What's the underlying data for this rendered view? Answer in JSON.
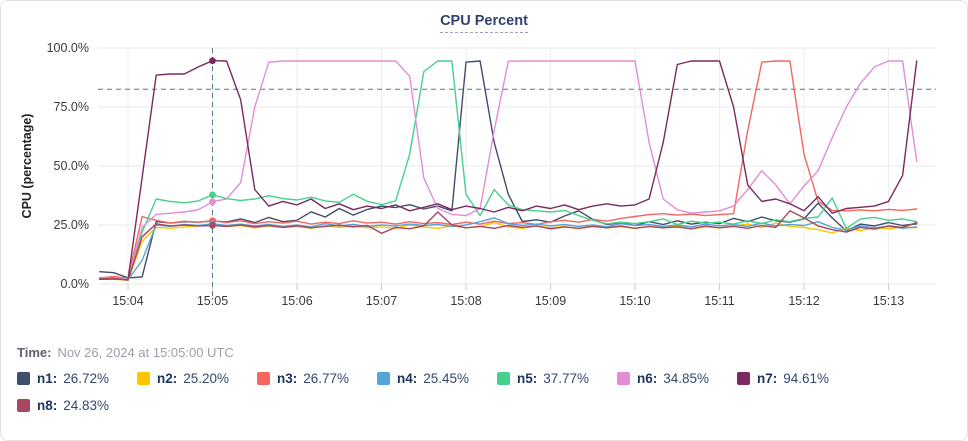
{
  "panel": {
    "title": "CPU Percent",
    "time_label": "Time:",
    "time_value": "Nov 26, 2024 at 15:05:00 UTC"
  },
  "legend": [
    {
      "label": "n1:",
      "value": "26.72%",
      "color": "#3f4e6d"
    },
    {
      "label": "n2:",
      "value": "25.20%",
      "color": "#fdc500"
    },
    {
      "label": "n3:",
      "value": "26.77%",
      "color": "#f4665e"
    },
    {
      "label": "n4:",
      "value": "25.45%",
      "color": "#55a3d8"
    },
    {
      "label": "n5:",
      "value": "37.77%",
      "color": "#47d08d"
    },
    {
      "label": "n6:",
      "value": "34.85%",
      "color": "#e28dd6"
    },
    {
      "label": "n7:",
      "value": "94.61%",
      "color": "#7b2a60"
    },
    {
      "label": "n8:",
      "value": "24.83%",
      "color": "#a8475f"
    }
  ],
  "chart_data": {
    "type": "line",
    "title": "CPU Percent",
    "ylabel": "CPU (percentage)",
    "ylim": [
      0,
      100
    ],
    "grid": true,
    "y_ticks": [
      "0.0%",
      "25.0%",
      "50.0%",
      "75.0%",
      "100.0%"
    ],
    "y_tick_values": [
      0,
      25,
      50,
      75,
      100
    ],
    "x_ticks": [
      "15:04",
      "15:05",
      "15:06",
      "15:07",
      "15:08",
      "15:09",
      "15:10",
      "15:11",
      "15:12",
      "15:13"
    ],
    "threshold_percent": 82.5,
    "crosshair_time": "15:05",
    "crosshair_x_min": 1.0,
    "t0_min": -0.3333,
    "dt_min": 0.16667,
    "series": [
      {
        "name": "n1",
        "color": "#3f4e6d",
        "at_cursor": 26.72,
        "values": [
          5.2,
          4.8,
          2.6,
          3.0,
          26.5,
          25.8,
          26.4,
          26.2,
          26.7,
          26.3,
          27.6,
          26.0,
          28.2,
          26.4,
          27.0,
          30.6,
          28.4,
          32.0,
          29.2,
          31.6,
          33.0,
          32.4,
          33.6,
          31.8,
          33.0,
          31.0,
          94.0,
          94.5,
          60.0,
          38.0,
          26.5,
          27.2,
          26.2,
          28.8,
          31.0,
          27.4,
          25.2,
          26.0,
          24.8,
          26.4,
          25.2,
          26.8,
          25.4,
          26.2,
          25.6,
          27.8,
          26.4,
          28.4,
          26.8,
          26.2,
          27.6,
          34.3,
          28.0,
          22.5,
          25.4,
          24.6,
          26.0,
          24.8,
          25.5
        ]
      },
      {
        "name": "n2",
        "color": "#fdc500",
        "at_cursor": 25.2,
        "values": [
          2.2,
          2.0,
          1.6,
          18.0,
          24.0,
          23.6,
          24.2,
          24.6,
          25.2,
          24.4,
          24.8,
          23.8,
          24.6,
          24.0,
          24.4,
          23.6,
          24.8,
          24.0,
          24.6,
          23.8,
          24.2,
          23.6,
          25.0,
          24.2,
          23.6,
          24.6,
          23.8,
          24.4,
          26.0,
          24.2,
          23.6,
          24.6,
          23.8,
          24.4,
          23.4,
          24.6,
          23.8,
          24.2,
          23.6,
          24.4,
          23.8,
          24.6,
          23.4,
          24.2,
          23.8,
          24.6,
          25.4,
          24.0,
          25.8,
          24.4,
          24.0,
          23.0,
          21.6,
          23.8,
          22.6,
          24.0,
          23.4,
          24.2,
          23.8
        ]
      },
      {
        "name": "n3",
        "color": "#f4665e",
        "at_cursor": 26.77,
        "values": [
          2.6,
          3.2,
          2.4,
          28.5,
          27.0,
          25.8,
          26.6,
          26.2,
          26.8,
          26.0,
          26.8,
          25.6,
          26.4,
          25.8,
          26.6,
          25.4,
          26.2,
          25.6,
          26.8,
          25.8,
          26.2,
          25.4,
          26.4,
          25.6,
          26.0,
          25.2,
          26.2,
          25.4,
          26.6,
          25.6,
          26.0,
          25.2,
          26.4,
          27.0,
          26.2,
          27.4,
          26.6,
          27.8,
          28.6,
          29.4,
          29.8,
          29.2,
          29.6,
          29.0,
          29.4,
          29.8,
          65.0,
          94.0,
          94.5,
          94.5,
          55.0,
          35.0,
          31.2,
          31.0,
          31.4,
          31.0,
          31.6,
          31.2,
          31.8
        ]
      },
      {
        "name": "n4",
        "color": "#55a3d8",
        "at_cursor": 25.45,
        "values": [
          2.0,
          2.2,
          1.8,
          10.0,
          25.0,
          24.4,
          25.2,
          24.8,
          25.5,
          24.8,
          25.4,
          24.6,
          25.2,
          24.4,
          25.0,
          24.2,
          25.6,
          24.6,
          25.2,
          24.4,
          25.0,
          24.6,
          25.4,
          24.8,
          25.2,
          24.4,
          25.0,
          26.4,
          28.0,
          25.6,
          24.8,
          25.4,
          24.6,
          25.2,
          24.4,
          25.0,
          24.2,
          25.6,
          24.8,
          25.2,
          24.4,
          25.0,
          24.2,
          25.4,
          24.6,
          25.2,
          24.4,
          25.8,
          24.6,
          25.2,
          24.8,
          26.4,
          24.0,
          22.8,
          24.6,
          23.8,
          24.4,
          23.6,
          24.2
        ]
      },
      {
        "name": "n5",
        "color": "#47d08d",
        "at_cursor": 37.77,
        "values": [
          2.8,
          2.6,
          2.2,
          22.0,
          36.0,
          35.0,
          34.4,
          35.2,
          37.8,
          36.2,
          35.4,
          36.0,
          37.4,
          36.2,
          35.6,
          36.8,
          35.2,
          34.6,
          38.0,
          35.0,
          33.6,
          35.2,
          55.0,
          90.0,
          94.5,
          94.5,
          38.0,
          29.0,
          40.0,
          33.5,
          31.5,
          31.0,
          30.5,
          31.2,
          29.0,
          27.0,
          25.5,
          26.2,
          25.6,
          26.4,
          27.6,
          25.2,
          26.6,
          25.8,
          26.2,
          25.4,
          26.8,
          25.6,
          27.2,
          26.4,
          27.8,
          28.4,
          36.5,
          23.5,
          27.6,
          28.2,
          27.0,
          27.6,
          26.4
        ]
      },
      {
        "name": "n6",
        "color": "#e28dd6",
        "at_cursor": 34.85,
        "values": [
          2.4,
          2.8,
          2.0,
          24.0,
          29.5,
          30.0,
          30.5,
          31.5,
          34.9,
          36.0,
          43.0,
          75.0,
          94.0,
          94.5,
          94.5,
          94.5,
          94.5,
          94.5,
          94.5,
          94.5,
          94.5,
          94.5,
          88.0,
          45.0,
          32.0,
          29.5,
          29.0,
          32.0,
          65.0,
          94.4,
          94.5,
          94.5,
          94.5,
          94.5,
          94.5,
          94.5,
          94.5,
          94.5,
          94.5,
          60.0,
          36.0,
          31.5,
          30.0,
          30.5,
          31.0,
          33.0,
          40.0,
          48.0,
          42.0,
          34.0,
          41.5,
          48.0,
          62.0,
          75.0,
          85.0,
          92.0,
          94.5,
          94.5,
          52.0
        ]
      },
      {
        "name": "n7",
        "color": "#7b2a60",
        "at_cursor": 94.61,
        "values": [
          2.0,
          2.2,
          1.8,
          45.0,
          88.5,
          89.0,
          89.0,
          92.0,
          94.6,
          94.5,
          78.0,
          40.0,
          33.0,
          35.0,
          33.5,
          36.0,
          32.0,
          34.0,
          31.5,
          33.0,
          32.0,
          33.5,
          31.0,
          32.5,
          34.0,
          31.5,
          33.0,
          32.0,
          30.5,
          32.5,
          31.0,
          33.0,
          32.0,
          33.5,
          31.5,
          33.0,
          34.0,
          33.0,
          33.5,
          36.0,
          60.0,
          93.0,
          94.5,
          94.5,
          94.5,
          75.0,
          42.0,
          35.0,
          36.0,
          34.0,
          31.0,
          37.0,
          30.0,
          32.0,
          32.5,
          33.0,
          35.0,
          46.0,
          94.5
        ]
      },
      {
        "name": "n8",
        "color": "#a8475f",
        "at_cursor": 24.83,
        "values": [
          2.2,
          2.4,
          1.6,
          20.0,
          25.5,
          24.6,
          25.0,
          24.6,
          24.8,
          24.4,
          25.0,
          24.2,
          24.8,
          24.0,
          24.6,
          23.8,
          24.4,
          25.0,
          24.2,
          24.8,
          21.5,
          24.0,
          23.4,
          24.6,
          30.5,
          25.0,
          23.8,
          24.4,
          23.6,
          24.8,
          24.0,
          24.6,
          23.4,
          24.2,
          23.6,
          24.4,
          23.8,
          24.6,
          23.6,
          24.4,
          23.8,
          24.2,
          23.4,
          24.6,
          23.8,
          24.4,
          23.6,
          24.8,
          24.0,
          31.0,
          28.0,
          24.6,
          23.0,
          22.0,
          24.0,
          23.2,
          24.6,
          24.0,
          26.0
        ]
      }
    ]
  },
  "colors": {
    "grid": "#e7e7e7",
    "grid_vertical": "#ededed",
    "tick_text": "#3a3a3a",
    "axis_title": "#222222",
    "crosshair": "#4d7d8f",
    "title": "#2f4272"
  }
}
